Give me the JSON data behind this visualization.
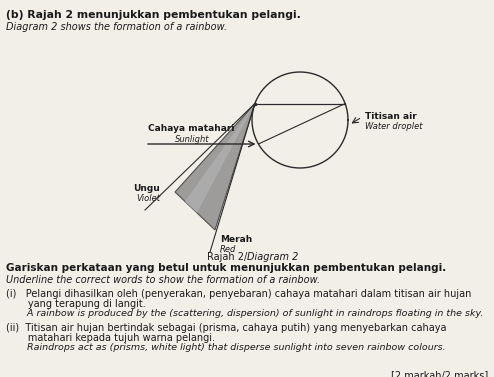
{
  "bg_color": "#f2efe9",
  "title_b": "(b) Rajah 2 menunjukkan pembentukan pelangi.",
  "title_b_italic": "Diagram 2 shows the formation of a rainbow.",
  "diagram_caption_bold": "Rajah 2/",
  "diagram_caption_italic": "Diagram 2",
  "sunlight_label": "Cahaya matahari",
  "sunlight_italic": "Sunlight",
  "water_droplet_label": "Titisan air",
  "water_droplet_italic": "Water droplet",
  "violet_label": "Ungu",
  "violet_italic": "Violet",
  "red_label": "Merah",
  "red_italic": "Red",
  "instruction_bold": "Gariskan perkataan yang betul untuk menunjukkan pembentukan pelangi.",
  "instruction_italic": "Underline the correct words to show the formation of a rainbow.",
  "q1_malay_line1": "(i)   Pelangi dihasilkan oleh (penyerakan, penyebaran) cahaya matahari dalam titisan air hujan",
  "q1_malay_line2": "       yang terapung di langit.",
  "q1_english": "       A rainbow is produced by the (scattering, dispersion) of sunlight in raindrops floating in the sky.",
  "q2_malay_line1": "(ii)  Titisan air hujan bertindak sebagai (prisma, cahaya putih) yang menyebarkan cahaya",
  "q2_malay_line2": "       matahari kepada tujuh warna pelangi.",
  "q2_english": "       Raindrops act as (prisms, white light) that disperse sunlight into seven rainbow colours.",
  "marks": "[2 markah/2 marks]",
  "text_color": "#1a1a1a",
  "line_color": "#2a2a2a",
  "cone_fill": "#888888",
  "cone_fill2": "#b0b0b0",
  "cone_edge": "#333333"
}
